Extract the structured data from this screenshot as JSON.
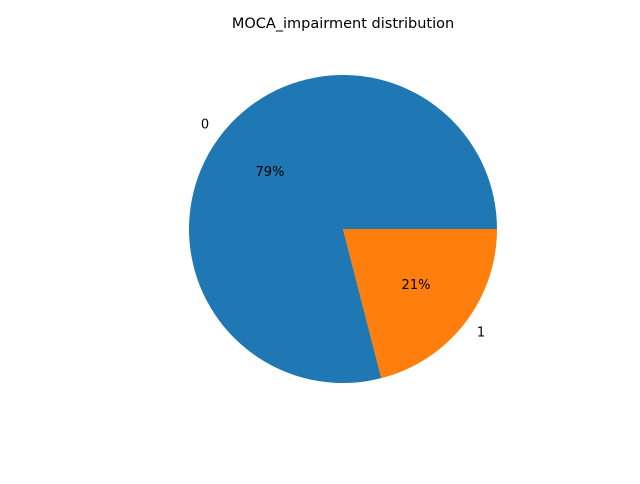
{
  "chart_data": {
    "type": "pie",
    "title": "MOCA_impairment distribution",
    "slices": [
      {
        "label": "0",
        "percent_label": "79%",
        "value": 79,
        "color": "#1f77b4"
      },
      {
        "label": "1",
        "percent_label": "21%",
        "value": 21,
        "color": "#ff7f0e"
      }
    ],
    "start_angle_deg": 0,
    "direction": "counterclockwise",
    "legend": "none"
  }
}
